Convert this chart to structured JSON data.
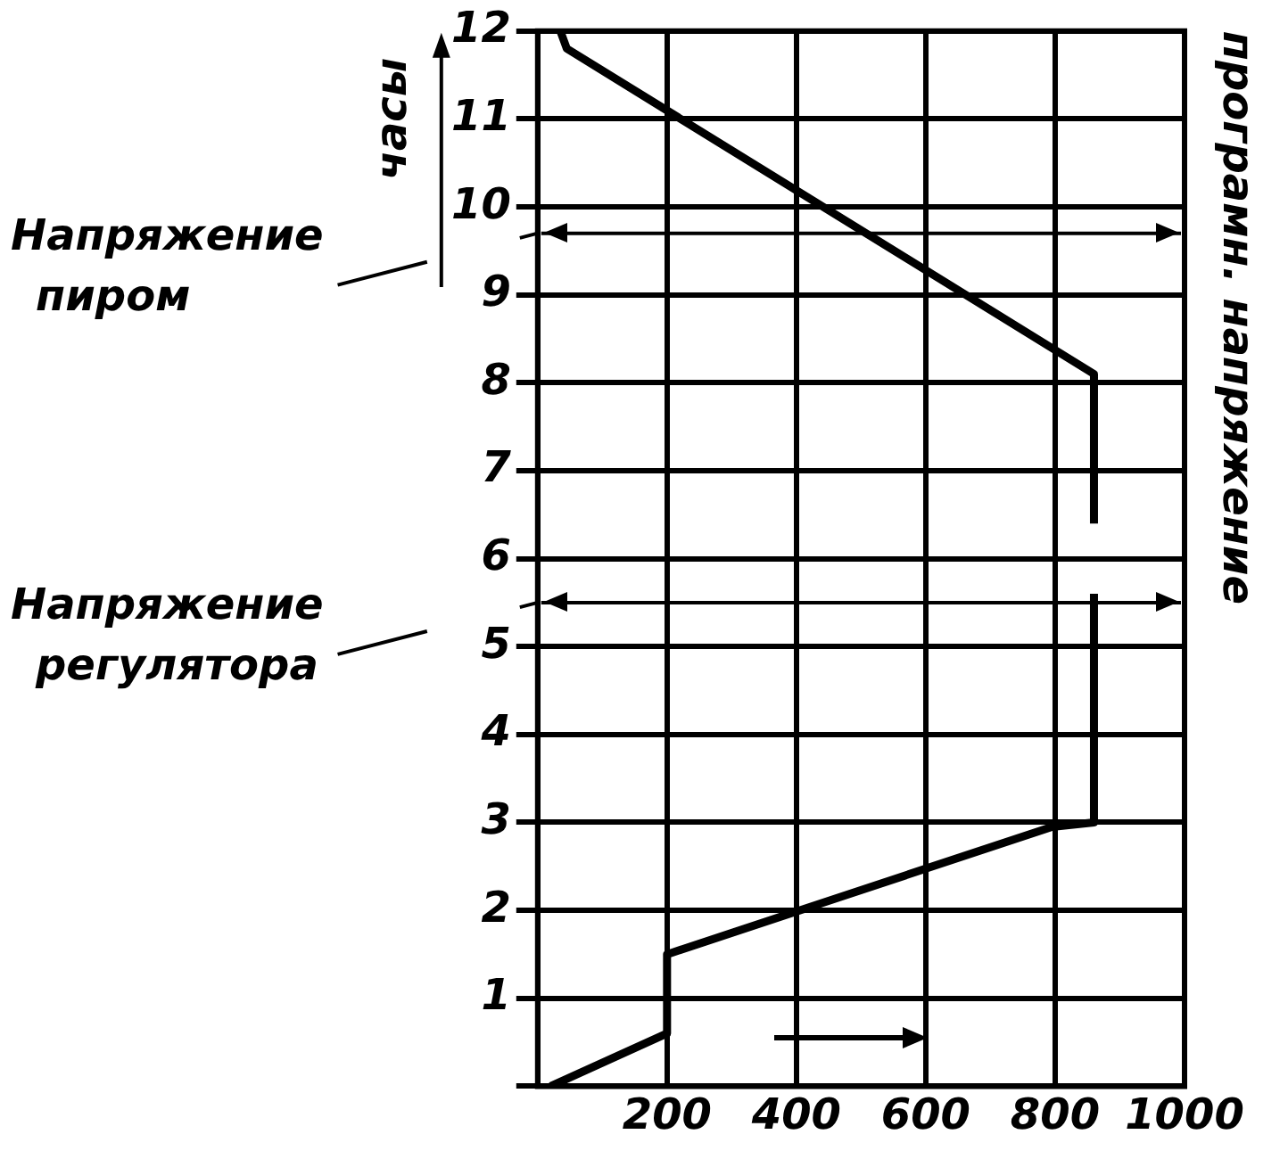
{
  "chart_data": {
    "type": "line",
    "ylabel": "часы",
    "annotations": [
      "програмн. напряжение",
      "Напряжение пиром",
      "Напряжение регулятора"
    ],
    "series": [
      {
        "type": "line",
        "color": "#000000",
        "x": [
          20,
          200,
          200,
          795,
          860,
          860,
          null,
          860,
          860,
          45,
          35
        ],
        "values": [
          0,
          0.6,
          1.5,
          2.95,
          3,
          5.6,
          null,
          6.4,
          8.1,
          11.8,
          12
        ]
      }
    ],
    "xlim": [
      0,
      1000
    ],
    "xticks": [
      {
        "value": 0,
        "label": null
      },
      200,
      400,
      600,
      800,
      1000
    ],
    "ylim": [
      0,
      12
    ],
    "yticks": [
      {
        "value": 0,
        "label": null
      },
      1,
      2,
      3,
      4,
      5,
      6,
      7,
      8,
      9,
      10,
      11,
      12
    ],
    "ref_lines": [
      {
        "axis": "y",
        "value": 9.7
      },
      {
        "axis": "y",
        "value": 5.5
      }
    ],
    "grid": true,
    "legend": false,
    "marker": "none",
    "line_style": "solid"
  }
}
